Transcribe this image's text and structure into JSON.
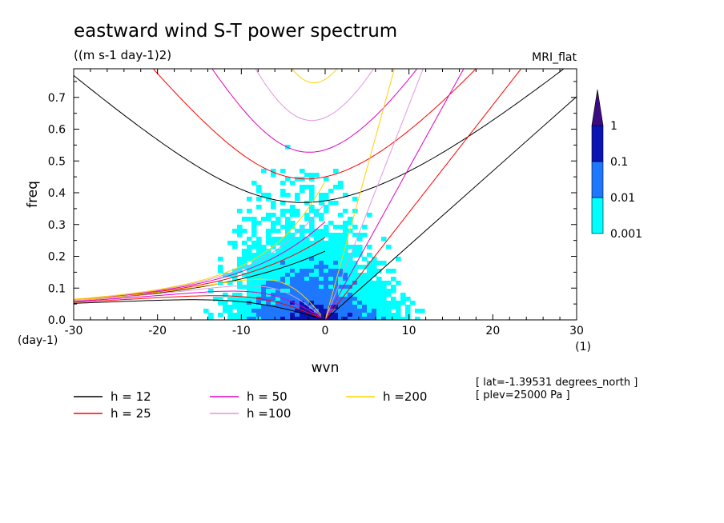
{
  "chart_data": {
    "type": "heatmap",
    "title": "eastward wind S-T power spectrum",
    "subtitle": "((m s-1 day-1)2)",
    "model_label": "MRI_flat",
    "xlabel": "wvn",
    "ylabel": "freq",
    "x_unit": "(1)",
    "y_unit": "(day-1)",
    "xlim": [
      -30,
      30
    ],
    "ylim": [
      0,
      0.79
    ],
    "x_ticks": [
      -30,
      -20,
      -10,
      0,
      10,
      20,
      30
    ],
    "x_tick_labels": [
      "-30",
      "-20",
      "-10",
      "0",
      "10",
      "20",
      "30"
    ],
    "y_ticks": [
      0,
      0.1,
      0.2,
      0.3,
      0.4,
      0.5,
      0.6,
      0.7
    ],
    "y_tick_labels": [
      "0.0",
      "0.1",
      "0.2",
      "0.3",
      "0.4",
      "0.5",
      "0.6",
      "0.7"
    ],
    "colorbar": {
      "levels": [
        0.001,
        0.01,
        0.1,
        1
      ],
      "labels": [
        "0.001",
        "0.01",
        "0.1",
        "1"
      ],
      "colors": [
        "#00ffff",
        "#1e78ff",
        "#0a14b4",
        "#3c0a82"
      ]
    },
    "dispersion_curves": [
      {
        "name": "h = 12",
        "h": 12,
        "color": "#000000"
      },
      {
        "name": "h = 25",
        "h": 25,
        "color": "#ff0000"
      },
      {
        "name": "h = 50",
        "h": 50,
        "color": "#e000c0"
      },
      {
        "name": "h =100",
        "h": 100,
        "color": "#e096e0"
      },
      {
        "name": "h =200",
        "h": 200,
        "color": "#ffd200"
      }
    ],
    "info": [
      "[ lat=-1.39531 degrees_north ]",
      "[ plev=25000 Pa ]"
    ]
  }
}
